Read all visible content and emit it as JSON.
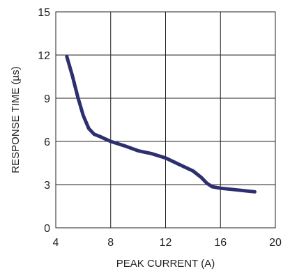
{
  "chart_data": {
    "type": "line",
    "title": "",
    "xlabel": "PEAK CURRENT (A)",
    "ylabel": "RESPONSE TIME (µs)",
    "xlim": [
      4,
      20
    ],
    "ylim": [
      0,
      15
    ],
    "x_ticks": [
      4,
      8,
      12,
      16,
      20
    ],
    "y_ticks": [
      0,
      3,
      6,
      9,
      12,
      15
    ],
    "grid": true,
    "legend": "none",
    "series": [
      {
        "color": "#2e2f6e",
        "points": [
          [
            4.8,
            11.9
          ],
          [
            5.2,
            10.6
          ],
          [
            5.6,
            9.1
          ],
          [
            6.0,
            7.8
          ],
          [
            6.4,
            6.9
          ],
          [
            6.8,
            6.5
          ],
          [
            7.2,
            6.35
          ],
          [
            8.0,
            6.0
          ],
          [
            9.0,
            5.7
          ],
          [
            10.0,
            5.35
          ],
          [
            11.0,
            5.15
          ],
          [
            12.0,
            4.85
          ],
          [
            13.0,
            4.4
          ],
          [
            14.0,
            3.95
          ],
          [
            14.6,
            3.5
          ],
          [
            15.0,
            3.1
          ],
          [
            15.4,
            2.85
          ],
          [
            16.0,
            2.75
          ],
          [
            17.0,
            2.65
          ],
          [
            18.0,
            2.55
          ],
          [
            18.5,
            2.5
          ]
        ]
      }
    ]
  }
}
